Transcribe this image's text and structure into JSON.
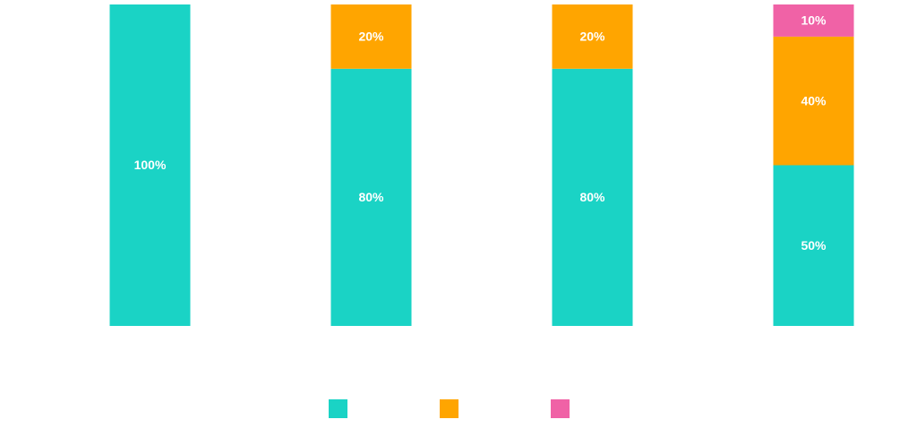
{
  "chart_data": {
    "type": "stacked-bar",
    "categories": [
      null,
      null,
      null,
      null
    ],
    "ylim": [
      0,
      100
    ],
    "series": [
      {
        "color": "#1ad3c5",
        "values": [
          100,
          80,
          80,
          50
        ],
        "value_labels": [
          "100%",
          "80%",
          "80%",
          "50%"
        ]
      },
      {
        "color": "#ffa500",
        "values": [
          0,
          20,
          20,
          40
        ],
        "value_labels": [
          null,
          "20%",
          "20%",
          "40%"
        ]
      },
      {
        "color": "#f062a6",
        "values": [
          0,
          0,
          0,
          10
        ],
        "value_labels": [
          null,
          null,
          null,
          "10%"
        ]
      }
    ]
  }
}
